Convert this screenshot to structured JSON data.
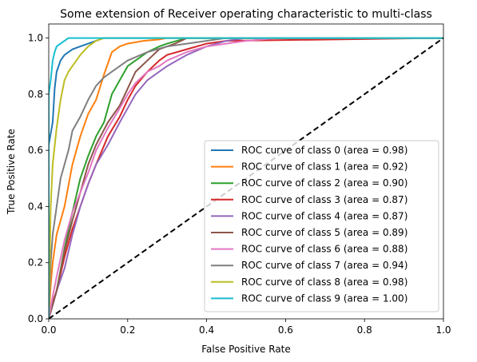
{
  "chart_data": {
    "type": "line",
    "title": "Some extension of Receiver operating characteristic to multi-class",
    "xlabel": "False Positive Rate",
    "ylabel": "True Positive Rate",
    "xlim": [
      0.0,
      1.0
    ],
    "ylim": [
      0.0,
      1.05
    ],
    "xticks": [
      "0.0",
      "0.2",
      "0.4",
      "0.6",
      "0.8",
      "1.0"
    ],
    "yticks": [
      "0.0",
      "0.2",
      "0.4",
      "0.6",
      "0.8",
      "1.0"
    ],
    "grid": false,
    "legend_position": "lower-right",
    "series": [
      {
        "name": "ROC curve of class 0 (area = 0.98)",
        "color": "#1f77b4",
        "x": [
          0,
          0,
          0.01,
          0.015,
          0.02,
          0.03,
          0.04,
          0.05,
          0.06,
          0.08,
          0.1,
          0.12,
          0.14,
          0.2,
          1.0
        ],
        "y": [
          0,
          0.62,
          0.7,
          0.82,
          0.88,
          0.92,
          0.94,
          0.95,
          0.96,
          0.97,
          0.98,
          0.99,
          1.0,
          1.0,
          1.0
        ]
      },
      {
        "name": "ROC curve of class 1 (area = 0.92)",
        "color": "#ff7f0e",
        "x": [
          0,
          0.005,
          0.01,
          0.02,
          0.04,
          0.06,
          0.08,
          0.1,
          0.12,
          0.14,
          0.16,
          0.18,
          0.2,
          0.24,
          0.28,
          0.3,
          1.0
        ],
        "y": [
          0,
          0.12,
          0.2,
          0.3,
          0.4,
          0.55,
          0.65,
          0.73,
          0.78,
          0.87,
          0.95,
          0.97,
          0.98,
          0.99,
          0.995,
          1.0,
          1.0
        ]
      },
      {
        "name": "ROC curve of class 2 (area = 0.90)",
        "color": "#2ca02c",
        "x": [
          0,
          0.01,
          0.02,
          0.04,
          0.06,
          0.08,
          0.1,
          0.12,
          0.14,
          0.16,
          0.18,
          0.2,
          0.22,
          0.25,
          0.28,
          0.3,
          0.35,
          1.0
        ],
        "y": [
          0,
          0.05,
          0.1,
          0.25,
          0.38,
          0.5,
          0.58,
          0.65,
          0.7,
          0.8,
          0.85,
          0.9,
          0.92,
          0.95,
          0.97,
          0.98,
          1.0,
          1.0
        ]
      },
      {
        "name": "ROC curve of class 3 (area = 0.87)",
        "color": "#d62728",
        "x": [
          0,
          0.01,
          0.02,
          0.04,
          0.06,
          0.08,
          0.1,
          0.12,
          0.15,
          0.18,
          0.2,
          0.22,
          0.25,
          0.28,
          0.3,
          0.35,
          0.4,
          0.45,
          1.0
        ],
        "y": [
          0,
          0.06,
          0.1,
          0.22,
          0.32,
          0.4,
          0.48,
          0.55,
          0.65,
          0.72,
          0.78,
          0.83,
          0.88,
          0.92,
          0.94,
          0.96,
          0.98,
          0.99,
          1.0
        ]
      },
      {
        "name": "ROC curve of class 4 (area = 0.87)",
        "color": "#9467bd",
        "x": [
          0,
          0.02,
          0.04,
          0.06,
          0.08,
          0.1,
          0.12,
          0.15,
          0.18,
          0.2,
          0.22,
          0.25,
          0.28,
          0.3,
          0.35,
          0.4,
          0.45,
          0.5,
          1.0
        ],
        "y": [
          0,
          0.1,
          0.18,
          0.3,
          0.4,
          0.48,
          0.55,
          0.62,
          0.7,
          0.75,
          0.8,
          0.85,
          0.88,
          0.9,
          0.94,
          0.97,
          0.99,
          1.0,
          1.0
        ]
      },
      {
        "name": "ROC curve of class 5 (area = 0.89)",
        "color": "#8c564b",
        "x": [
          0,
          0.01,
          0.02,
          0.04,
          0.06,
          0.08,
          0.1,
          0.12,
          0.15,
          0.18,
          0.2,
          0.22,
          0.25,
          0.28,
          0.3,
          0.32,
          0.35,
          1.0
        ],
        "y": [
          0,
          0.05,
          0.1,
          0.24,
          0.35,
          0.45,
          0.55,
          0.62,
          0.7,
          0.76,
          0.82,
          0.88,
          0.92,
          0.96,
          0.97,
          0.98,
          1.0,
          1.0
        ]
      },
      {
        "name": "ROC curve of class 6 (area = 0.88)",
        "color": "#e377c2",
        "x": [
          0,
          0.01,
          0.02,
          0.04,
          0.06,
          0.08,
          0.1,
          0.12,
          0.15,
          0.18,
          0.2,
          0.22,
          0.25,
          0.28,
          0.3,
          0.35,
          0.4,
          0.5,
          0.58,
          1.0
        ],
        "y": [
          0,
          0.08,
          0.15,
          0.28,
          0.38,
          0.45,
          0.52,
          0.6,
          0.68,
          0.75,
          0.8,
          0.84,
          0.88,
          0.9,
          0.92,
          0.95,
          0.97,
          0.99,
          1.0,
          1.0
        ]
      },
      {
        "name": "ROC curve of class 7 (area = 0.94)",
        "color": "#7f7f7f",
        "x": [
          0,
          0.005,
          0.01,
          0.02,
          0.03,
          0.05,
          0.06,
          0.08,
          0.1,
          0.12,
          0.14,
          0.16,
          0.18,
          0.2,
          0.25,
          0.3,
          0.35,
          0.4,
          0.45,
          1.0
        ],
        "y": [
          0,
          0.2,
          0.3,
          0.4,
          0.5,
          0.6,
          0.67,
          0.72,
          0.78,
          0.83,
          0.86,
          0.88,
          0.9,
          0.92,
          0.95,
          0.97,
          0.98,
          0.99,
          1.0,
          1.0
        ]
      },
      {
        "name": "ROC curve of class 8 (area = 0.98)",
        "color": "#bcbd22",
        "x": [
          0,
          0.005,
          0.01,
          0.02,
          0.03,
          0.04,
          0.05,
          0.06,
          0.08,
          0.1,
          0.12,
          0.14,
          1.0
        ],
        "y": [
          0,
          0.4,
          0.55,
          0.68,
          0.78,
          0.85,
          0.88,
          0.9,
          0.94,
          0.97,
          0.99,
          1.0,
          1.0
        ]
      },
      {
        "name": "ROC curve of class 9 (area = 1.00)",
        "color": "#17becf",
        "x": [
          0,
          0,
          0.005,
          0.01,
          0.015,
          0.02,
          0.03,
          0.04,
          0.05,
          1.0
        ],
        "y": [
          0,
          0.8,
          0.85,
          0.92,
          0.95,
          0.97,
          0.98,
          0.99,
          1.0,
          1.0
        ]
      },
      {
        "name": "",
        "color": "#000000",
        "dashed": true,
        "x": [
          0,
          1
        ],
        "y": [
          0,
          1
        ]
      }
    ]
  }
}
